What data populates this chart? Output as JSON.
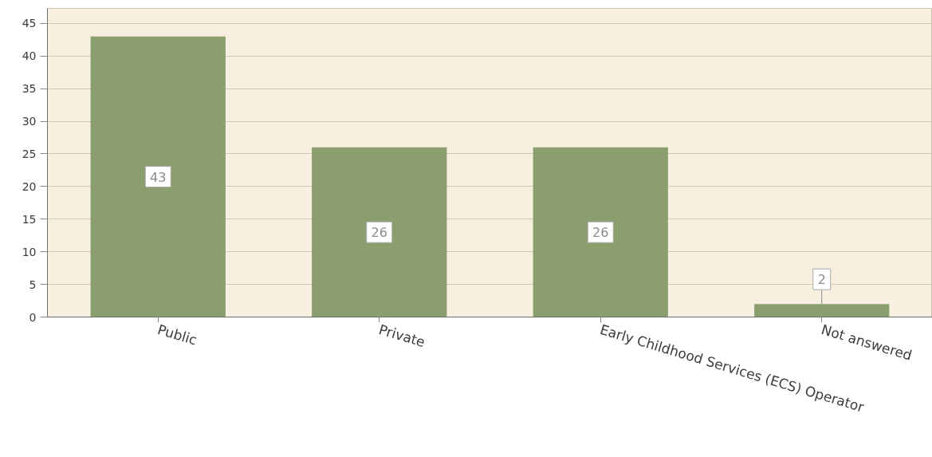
{
  "chart_data": {
    "type": "bar",
    "categories": [
      "Public",
      "Private",
      "Early Childhood Services (ECS) Operator",
      "Not answered"
    ],
    "values": [
      43,
      26,
      26,
      2
    ],
    "color": "#8a9e6e",
    "ylim": [
      0,
      47.3
    ],
    "yticks": [
      0,
      5,
      10,
      15,
      20,
      25,
      30,
      35,
      40,
      45
    ],
    "grid": "y",
    "data_labels": true
  }
}
